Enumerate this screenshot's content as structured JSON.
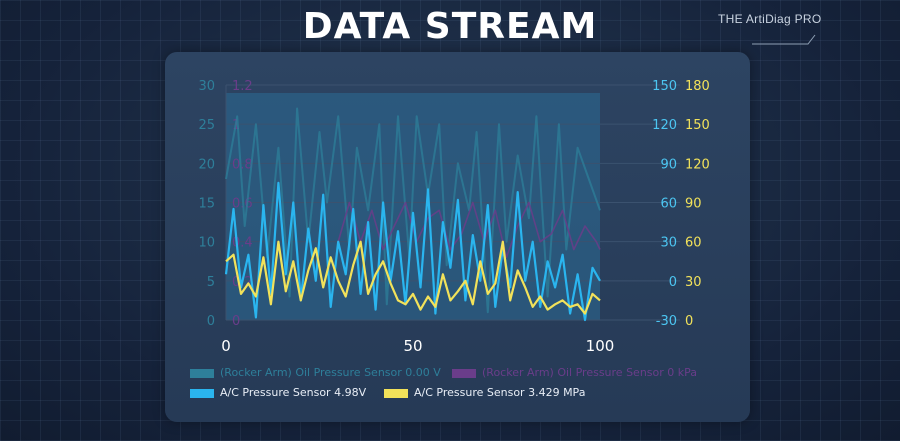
{
  "header": {
    "title": "DATA STREAM",
    "brand": "THE ArtiDiag PRO"
  },
  "colors": {
    "oil_v": "#2e7f9a",
    "oil_kpa": "#6a3d8a",
    "ac_v": "#2ab5ef",
    "ac_mpa": "#f2e25a",
    "axis1": "#2e7f9a",
    "axis2": "#6a3d8a",
    "axis3": "#4cc6f2",
    "axis4": "#f2e25a"
  },
  "chart_data": {
    "type": "line",
    "x_ticks": [
      "0",
      "50",
      "100"
    ],
    "xlim": [
      0,
      100
    ],
    "axes": [
      {
        "side": "left",
        "ylim": [
          0,
          30
        ],
        "ticks": [
          "0",
          "5",
          "10",
          "15",
          "20",
          "25",
          "30"
        ]
      },
      {
        "side": "left",
        "ylim": [
          0,
          1.2
        ],
        "ticks": [
          "0",
          "0.2",
          "0.4",
          "0.6",
          "0.8",
          "1",
          "1.2"
        ]
      },
      {
        "side": "right",
        "ylim": [
          -30,
          150
        ],
        "ticks": [
          "-30",
          "0",
          "30",
          "60",
          "90",
          "120",
          "150"
        ]
      },
      {
        "side": "right",
        "ylim": [
          0,
          180
        ],
        "ticks": [
          "0",
          "30",
          "60",
          "90",
          "120",
          "150",
          "180"
        ]
      }
    ],
    "series": [
      {
        "name": "(Rocker Arm) Oil Pressure Sensor 0.00 V",
        "axis": 0,
        "color_key": "oil_v",
        "x": [
          0,
          3,
          5,
          8,
          11,
          14,
          17,
          19,
          22,
          25,
          27,
          30,
          33,
          35,
          38,
          41,
          43,
          46,
          49,
          51,
          54,
          57,
          59,
          62,
          65,
          67,
          70,
          73,
          75,
          78,
          81,
          83,
          86,
          89,
          91,
          94,
          97,
          100
        ],
        "y": [
          18,
          26,
          12,
          25,
          8,
          22,
          3,
          27,
          10,
          24,
          15,
          26,
          9,
          22,
          14,
          25,
          2,
          26,
          8,
          26,
          16,
          25,
          7,
          20,
          14,
          24,
          1,
          25,
          10,
          21,
          13,
          26,
          3,
          25,
          9,
          22,
          18,
          14
        ]
      },
      {
        "name": "(Rocker Arm) Oil Pressure Sensor 0 kPa",
        "axis": 1,
        "color_key": "oil_kpa",
        "x": [
          30,
          33,
          36,
          39,
          42,
          45,
          48,
          51,
          54,
          57,
          60,
          63,
          66,
          69,
          72,
          75,
          78,
          81,
          84,
          87,
          90,
          93,
          96,
          99,
          100
        ],
        "y": [
          0.4,
          0.6,
          0.4,
          0.56,
          0.36,
          0.48,
          0.6,
          0.4,
          0.52,
          0.56,
          0.36,
          0.44,
          0.6,
          0.4,
          0.56,
          0.32,
          0.48,
          0.6,
          0.4,
          0.44,
          0.56,
          0.36,
          0.48,
          0.4,
          0.36
        ]
      },
      {
        "name": "A/C Pressure Sensor 4.98V",
        "axis": 2,
        "color_key": "ac_v",
        "x": [
          0,
          2,
          4,
          6,
          8,
          10,
          12,
          14,
          16,
          18,
          20,
          22,
          24,
          26,
          28,
          30,
          32,
          34,
          36,
          38,
          40,
          42,
          44,
          46,
          48,
          50,
          52,
          54,
          56,
          58,
          60,
          62,
          64,
          66,
          68,
          70,
          72,
          74,
          76,
          78,
          80,
          82,
          84,
          86,
          88,
          90,
          92,
          94,
          96,
          98,
          100
        ],
        "y": [
          5,
          55,
          -5,
          20,
          -28,
          58,
          -10,
          75,
          5,
          60,
          -15,
          40,
          0,
          66,
          -20,
          30,
          5,
          55,
          -10,
          45,
          -22,
          60,
          0,
          38,
          -18,
          52,
          -5,
          70,
          -25,
          45,
          10,
          62,
          -15,
          35,
          0,
          58,
          -20,
          25,
          -5,
          68,
          0,
          30,
          -20,
          15,
          -5,
          20,
          -25,
          5,
          -30,
          10,
          0
        ]
      },
      {
        "name": "A/C Pressure Sensor 3.429 MPa",
        "axis": 3,
        "color_key": "ac_mpa",
        "x": [
          0,
          2,
          4,
          6,
          8,
          10,
          12,
          14,
          16,
          18,
          20,
          22,
          24,
          26,
          28,
          30,
          32,
          34,
          36,
          38,
          40,
          42,
          44,
          46,
          48,
          50,
          52,
          54,
          56,
          58,
          60,
          62,
          64,
          66,
          68,
          70,
          72,
          74,
          76,
          78,
          80,
          82,
          84,
          86,
          88,
          90,
          92,
          94,
          96,
          98,
          100
        ],
        "y": [
          45,
          50,
          20,
          28,
          18,
          48,
          12,
          60,
          22,
          45,
          15,
          38,
          55,
          25,
          48,
          30,
          18,
          42,
          60,
          20,
          35,
          45,
          28,
          15,
          12,
          20,
          8,
          18,
          10,
          35,
          15,
          22,
          30,
          12,
          45,
          20,
          28,
          60,
          15,
          38,
          25,
          10,
          18,
          8,
          12,
          15,
          10,
          12,
          5,
          20,
          15
        ]
      }
    ],
    "legend": [
      {
        "label": "(Rocker Arm) Oil Pressure Sensor 0.00 V",
        "color_key": "oil_v"
      },
      {
        "label": "(Rocker Arm) Oil Pressure Sensor 0 kPa",
        "color_key": "oil_kpa"
      },
      {
        "label": "A/C Pressure Sensor 4.98V",
        "color_key": "ac_v"
      },
      {
        "label": "A/C Pressure Sensor 3.429 MPa",
        "color_key": "ac_mpa"
      }
    ],
    "legend_placement": "bottom",
    "grid": true
  }
}
